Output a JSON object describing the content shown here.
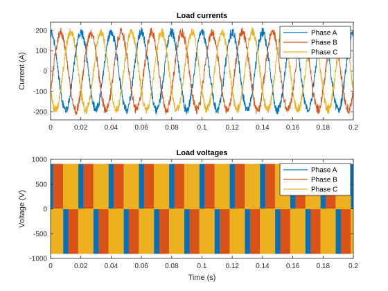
{
  "chart_data": [
    {
      "type": "line",
      "title": "Load currents",
      "xlabel": "",
      "ylabel": "Current (A)",
      "xlim": [
        0,
        0.2
      ],
      "ylim": [
        -240,
        240
      ],
      "xticks": [
        0,
        0.02,
        0.04,
        0.06,
        0.08,
        0.1,
        0.12,
        0.14,
        0.16,
        0.18,
        0.2
      ],
      "xtick_labels": [
        "0",
        "0.02",
        "0.04",
        "0.06",
        "0.08",
        "0.1",
        "0.12",
        "0.14",
        "0.16",
        "0.18",
        "0.2"
      ],
      "yticks": [
        -200,
        -100,
        0,
        100,
        200
      ],
      "ytick_labels": [
        "-200",
        "-100",
        "0",
        "100",
        "200"
      ],
      "legend": "top-right",
      "grid": false,
      "waveform": "sinusoid with switching ripple",
      "frequency_hz": 50,
      "amplitude": 190,
      "ripple": 20,
      "series": [
        {
          "name": "Phase A",
          "color": "#0072BD",
          "phase_deg": 90
        },
        {
          "name": "Phase B",
          "color": "#D95319",
          "phase_deg": -30
        },
        {
          "name": "Phase C",
          "color": "#EDB120",
          "phase_deg": 210
        }
      ]
    },
    {
      "type": "line",
      "title": "Load voltages",
      "xlabel": "Time (s)",
      "ylabel": "Voltage (V)",
      "xlim": [
        0,
        0.2
      ],
      "ylim": [
        -1000,
        1000
      ],
      "xticks": [
        0,
        0.02,
        0.04,
        0.06,
        0.08,
        0.1,
        0.12,
        0.14,
        0.16,
        0.18,
        0.2
      ],
      "xtick_labels": [
        "0",
        "0.02",
        "0.04",
        "0.06",
        "0.08",
        "0.1",
        "0.12",
        "0.14",
        "0.16",
        "0.18",
        "0.2"
      ],
      "yticks": [
        -1000,
        -500,
        0,
        500,
        1000
      ],
      "ytick_labels": [
        "-1000",
        "-500",
        "0",
        "500",
        "1000"
      ],
      "legend": "top-right",
      "grid": false,
      "waveform": "PWM square",
      "levels": [
        -900,
        0,
        900
      ],
      "frequency_hz": 50,
      "series": [
        {
          "name": "Phase A",
          "color": "#0072BD",
          "phase_deg": 90
        },
        {
          "name": "Phase B",
          "color": "#D95319",
          "phase_deg": -30
        },
        {
          "name": "Phase C",
          "color": "#EDB120",
          "phase_deg": 210
        }
      ]
    }
  ]
}
